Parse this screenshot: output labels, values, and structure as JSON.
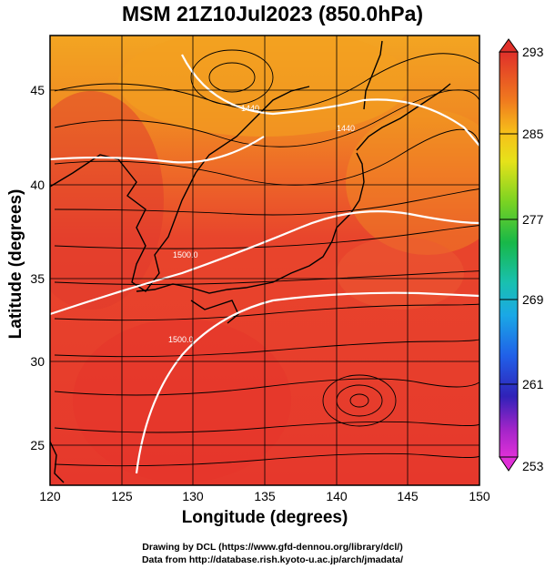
{
  "title": "MSM 21Z10Jul2023 (850.0hPa)",
  "x_axis_label": "Longitude (degrees)",
  "y_axis_label": "Latitude  (degrees)",
  "x_ticks": [
    "120",
    "125",
    "130",
    "135",
    "140",
    "145",
    "150"
  ],
  "y_ticks": [
    "25",
    "30",
    "35",
    "40",
    "45"
  ],
  "colorbar_ticks": [
    "293",
    "285",
    "277",
    "269",
    "261",
    "253"
  ],
  "contour_labels": [
    "1440",
    "1440",
    "1500.0",
    "1500.0"
  ],
  "credits": {
    "line1": "Drawing by DCL (https://www.gfd-dennou.org/library/dcl/)",
    "line2": "Data from http://database.rish.kyoto-u.ac.jp/arch/jmadata/"
  },
  "colors": {
    "warm_red": "#e8372c",
    "orange": "#f07a1e",
    "yellow_orange": "#f3a522",
    "contour": "#ffffff",
    "vectors": "#000000",
    "coast": "#000000"
  },
  "map_data": {
    "lon_range": [
      120,
      150
    ],
    "lat_range": [
      23,
      48
    ],
    "variable": "temperature (K)",
    "colorbar_range": [
      253,
      293
    ]
  }
}
